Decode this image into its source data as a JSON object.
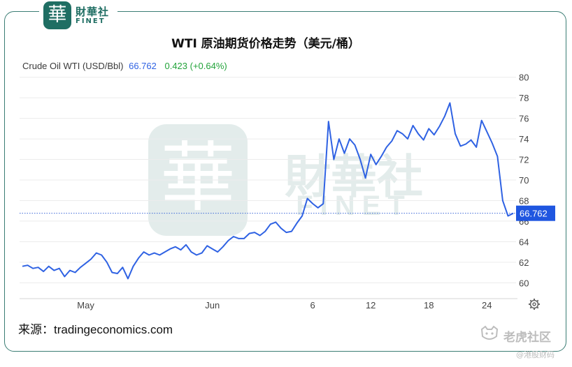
{
  "brand": {
    "seal_char": "華",
    "name_cn": "財華社",
    "name_en": "FINET"
  },
  "title": "WTI 原油期货价格走势（美元/桶）",
  "header": {
    "instrument": "Crude Oil WTI (USD/Bbl)",
    "price": "66.762",
    "change": "0.423 (+0.64%)"
  },
  "colors": {
    "line": "#2f62e3",
    "price_tag": "#1f56e0",
    "change": "#22a33a",
    "brand": "#1f6e63"
  },
  "chart_data": {
    "type": "line",
    "title": "WTI 原油期货价格走势（美元/桶）",
    "series": [
      {
        "name": "Crude Oil WTI (USD/Bbl)",
        "values": [
          61.6,
          61.7,
          61.4,
          61.5,
          61.1,
          61.6,
          61.2,
          61.4,
          60.6,
          61.2,
          61.0,
          61.5,
          61.9,
          62.3,
          62.9,
          62.7,
          62.0,
          61.0,
          60.9,
          61.5,
          60.4,
          61.6,
          62.4,
          63.0,
          62.7,
          62.9,
          62.7,
          63.0,
          63.3,
          63.5,
          63.2,
          63.7,
          63.0,
          62.7,
          62.9,
          63.6,
          63.3,
          63.0,
          63.5,
          64.1,
          64.5,
          64.3,
          64.3,
          64.8,
          64.9,
          64.6,
          65.0,
          65.7,
          65.9,
          65.3,
          64.9,
          65.0,
          65.8,
          66.5,
          68.2,
          67.7,
          67.3,
          67.7,
          75.7,
          72.0,
          74.0,
          72.6,
          74.0,
          73.4,
          72.0,
          70.2,
          72.5,
          71.5,
          72.3,
          73.2,
          73.8,
          74.8,
          74.5,
          74.0,
          75.3,
          74.5,
          73.9,
          75.0,
          74.4,
          75.2,
          76.2,
          77.5,
          74.5,
          73.3,
          73.5,
          73.9,
          73.2,
          75.8,
          74.7,
          73.6,
          72.3,
          68.0,
          66.5,
          66.762
        ]
      }
    ],
    "x_tick_labels": [
      "May",
      "Jun",
      "6",
      "12",
      "18",
      "24"
    ],
    "y_ticks": [
      60,
      62,
      64,
      66,
      68,
      70,
      72,
      74,
      76,
      78,
      80
    ],
    "ylim": [
      59,
      81
    ],
    "last_value": 66.762,
    "grid": "horizontal",
    "y_axis_position": "right"
  },
  "footer": {
    "source": "来源：tradingeconomics.com"
  },
  "watermark": {
    "brand": "老虎社区",
    "sub": "@港股财码"
  }
}
